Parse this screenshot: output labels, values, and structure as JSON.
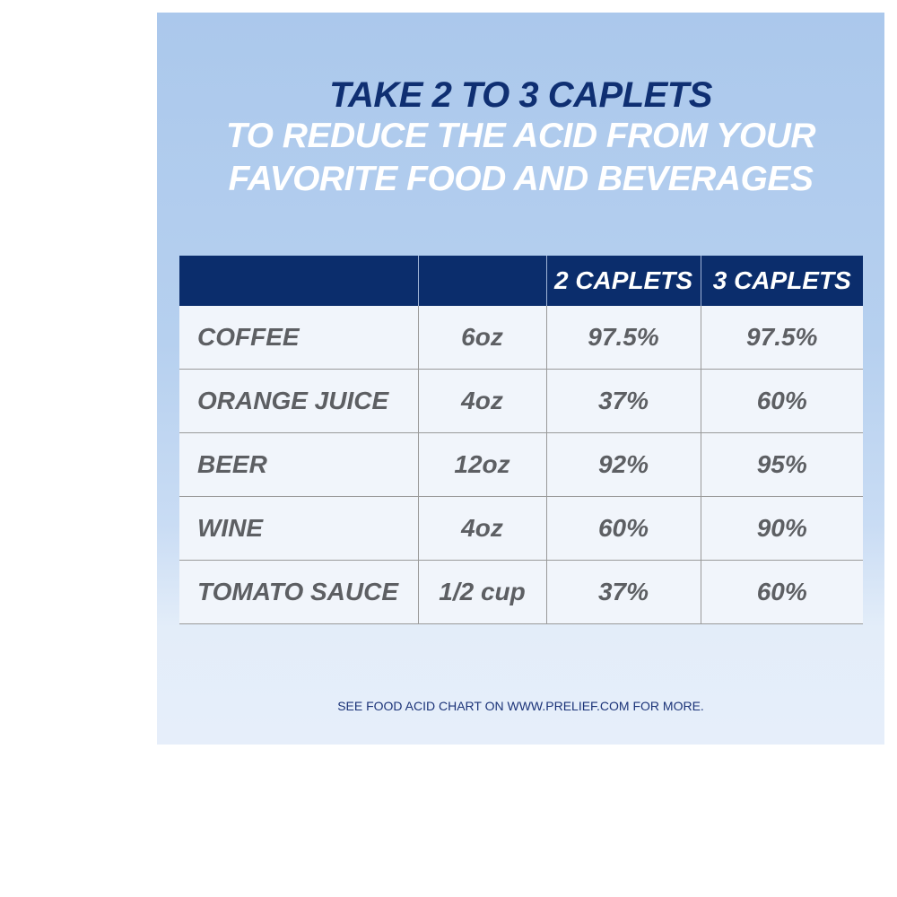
{
  "heading": {
    "line1": "TAKE 2 TO 3 CAPLETS",
    "line2": "TO REDUCE THE ACID FROM YOUR",
    "line3": "FAVORITE FOOD AND BEVERAGES"
  },
  "table": {
    "headers": [
      "",
      "",
      "2 CAPLETS",
      "3 CAPLETS"
    ],
    "rows": [
      [
        "COFFEE",
        "6oz",
        "97.5%",
        "97.5%"
      ],
      [
        "ORANGE JUICE",
        "4oz",
        "37%",
        "60%"
      ],
      [
        "BEER",
        "12oz",
        "92%",
        "95%"
      ],
      [
        "WINE",
        "4oz",
        "60%",
        "90%"
      ],
      [
        "TOMATO SAUCE",
        "1/2 cup",
        "37%",
        "60%"
      ]
    ]
  },
  "footnote": "SEE FOOD ACID CHART ON WWW.PRELIEF.COM FOR MORE.",
  "colors": {
    "panel_background": "#abc8ec",
    "header_background": "#0b2d6c",
    "title_dark": "#0f2f72",
    "body_text": "#5d5f63"
  },
  "chart_data": {
    "type": "table",
    "title": "TAKE 2 TO 3 CAPLETS TO REDUCE THE ACID FROM YOUR FAVORITE FOOD AND BEVERAGES",
    "columns": [
      "",
      "",
      "2 CAPLETS",
      "3 CAPLETS"
    ],
    "categories": [
      "COFFEE",
      "ORANGE JUICE",
      "BEER",
      "WINE",
      "TOMATO SAUCE"
    ],
    "serving": [
      "6oz",
      "4oz",
      "12oz",
      "4oz",
      "1/2 cup"
    ],
    "series": [
      {
        "name": "2 CAPLETS",
        "values": [
          97.5,
          37,
          92,
          60,
          37
        ]
      },
      {
        "name": "3 CAPLETS",
        "values": [
          97.5,
          60,
          95,
          90,
          60
        ]
      }
    ]
  }
}
